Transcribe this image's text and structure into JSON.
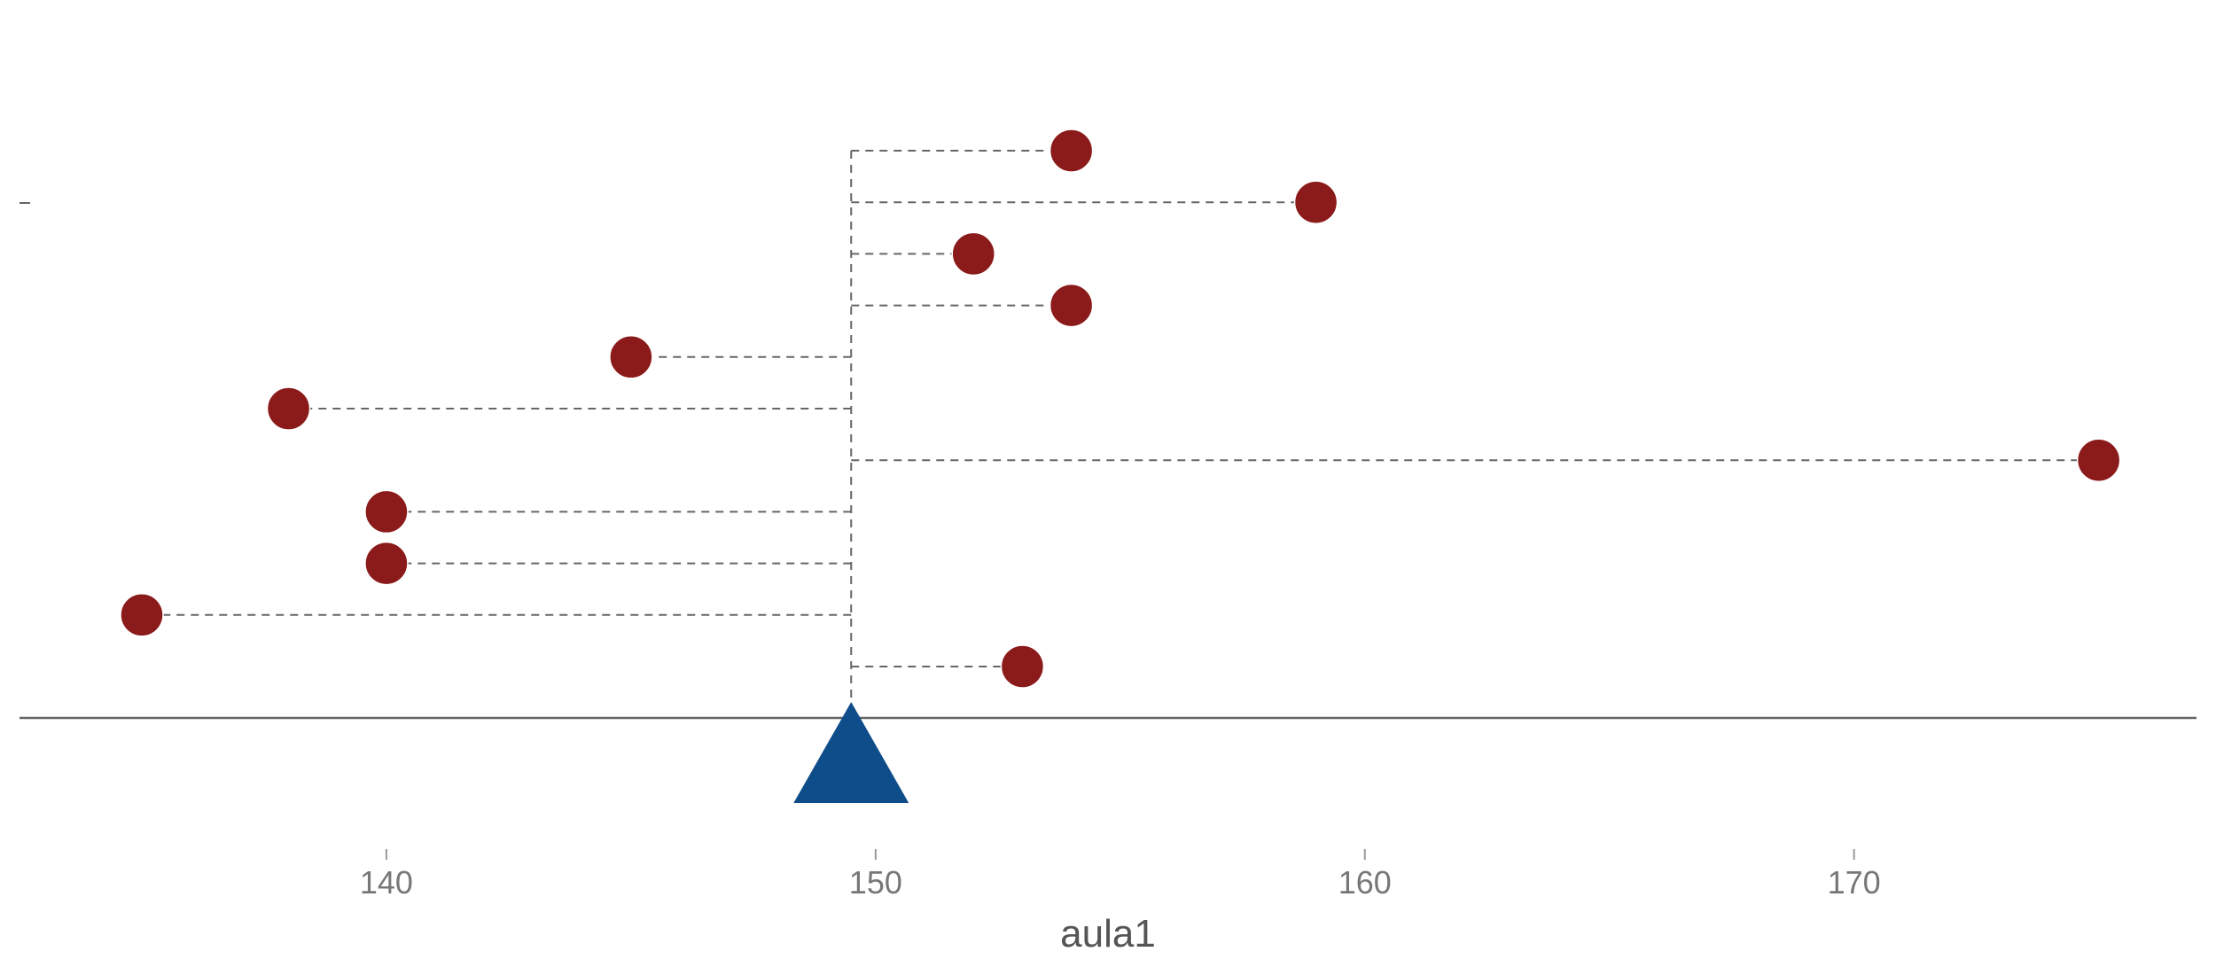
{
  "chart_data": {
    "type": "scatter",
    "title": "",
    "xlabel": "aula1",
    "ylabel": "",
    "xlim": [
      132.5,
      177.0
    ],
    "x_ticks": [
      140,
      150,
      160,
      170
    ],
    "mean": 149.5,
    "grid": false,
    "points": [
      {
        "x": 154,
        "rank": 1
      },
      {
        "x": 159,
        "rank": 2
      },
      {
        "x": 152,
        "rank": 3
      },
      {
        "x": 154,
        "rank": 4
      },
      {
        "x": 145,
        "rank": 5
      },
      {
        "x": 138,
        "rank": 6
      },
      {
        "x": 175,
        "rank": 7
      },
      {
        "x": 140,
        "rank": 8
      },
      {
        "x": 140,
        "rank": 9
      },
      {
        "x": 135,
        "rank": 10
      },
      {
        "x": 153,
        "rank": 11
      }
    ],
    "colors": {
      "point": "#8B1A1A",
      "mean_marker": "#0F4C8A",
      "dashed_line": "#666666",
      "axis_line": "#666666",
      "tick_text": "#777777"
    }
  }
}
